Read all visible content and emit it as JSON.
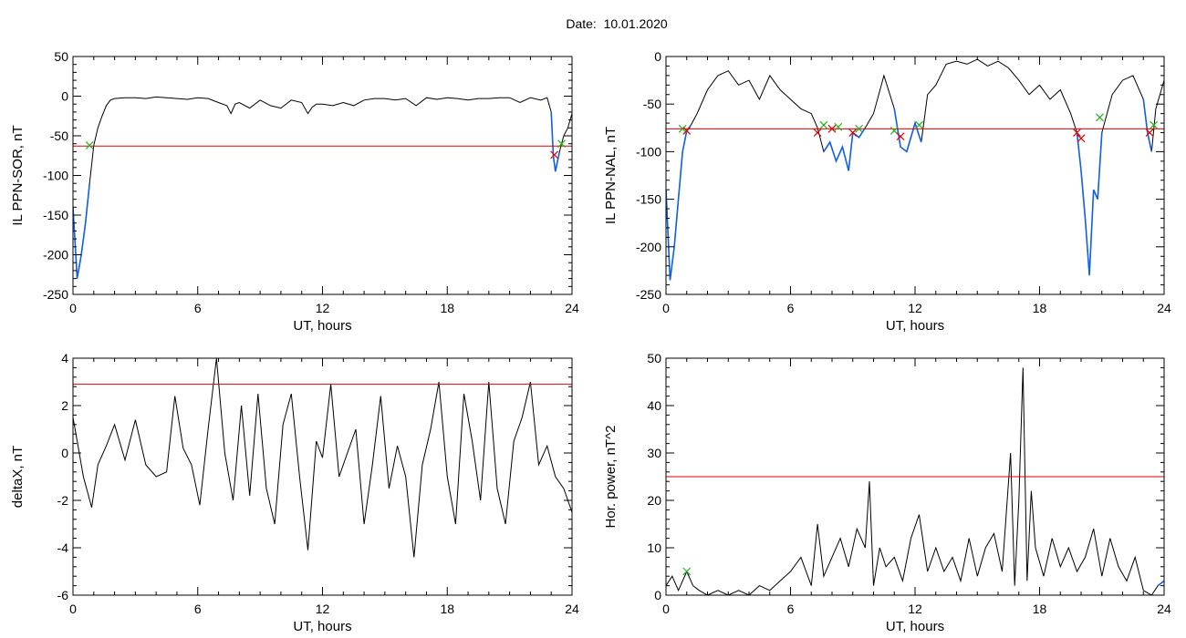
{
  "page": {
    "title": "Date:  10.01.2020"
  },
  "colors": {
    "trace": "#000000",
    "threshold": "#e00000",
    "highlight": "#1060e0",
    "start_marker": "#20b020",
    "end_marker": "#e00000"
  },
  "chart_data": [
    {
      "type": "line",
      "xlabel": "UT, hours",
      "ylabel": "IL PPN-SOR, nT",
      "xlim": [
        0,
        24
      ],
      "ylim": [
        -250,
        50
      ],
      "xticks": [
        0,
        6,
        12,
        18,
        24
      ],
      "yticks": [
        50,
        0,
        -50,
        -100,
        -150,
        -200,
        -250
      ],
      "threshold": -63,
      "x": [
        0,
        0.2,
        0.4,
        0.6,
        0.8,
        1.0,
        1.2,
        1.4,
        1.6,
        1.8,
        2.0,
        2.5,
        3,
        3.5,
        4,
        4.5,
        5,
        5.5,
        6,
        6.5,
        7,
        7.4,
        7.6,
        7.8,
        8,
        8.5,
        9,
        9.5,
        10,
        10.5,
        11,
        11.3,
        11.5,
        11.7,
        12,
        12.5,
        13,
        13.5,
        14,
        14.5,
        15,
        15.5,
        16,
        16.5,
        17,
        17.5,
        18,
        18.5,
        19,
        19.5,
        20,
        20.5,
        21,
        21.5,
        22,
        22.5,
        22.8,
        23.0,
        23.1,
        23.2,
        23.4,
        23.6,
        23.8,
        24
      ],
      "y": [
        -140,
        -230,
        -200,
        -160,
        -110,
        -62,
        -40,
        -25,
        -12,
        -5,
        -3,
        -2,
        -2,
        -3,
        -1,
        -2,
        -3,
        -4,
        -2,
        -3,
        -8,
        -12,
        -22,
        -10,
        -8,
        -15,
        -5,
        -12,
        -15,
        -5,
        -8,
        -22,
        -14,
        -10,
        -10,
        -12,
        -8,
        -12,
        -5,
        -3,
        -3,
        -5,
        -3,
        -12,
        -2,
        -4,
        -2,
        -3,
        -5,
        -3,
        -3,
        -2,
        -2,
        -8,
        -2,
        -5,
        -2,
        -20,
        -75,
        -95,
        -70,
        -50,
        -40,
        -22
      ],
      "highlight_ranges": [
        [
          0,
          0.9
        ],
        [
          23.0,
          23.5
        ]
      ],
      "markers": [
        {
          "x": 0.8,
          "y": -62,
          "kind": "start"
        },
        {
          "x": 23.15,
          "y": -74,
          "kind": "end"
        },
        {
          "x": 23.5,
          "y": -60,
          "kind": "start"
        }
      ]
    },
    {
      "type": "line",
      "xlabel": "UT, hours",
      "ylabel": "IL PPN-NAL, nT",
      "xlim": [
        0,
        24
      ],
      "ylim": [
        -250,
        0
      ],
      "xticks": [
        0,
        6,
        12,
        18,
        24
      ],
      "yticks": [
        0,
        -50,
        -100,
        -150,
        -200,
        -250
      ],
      "threshold": -76,
      "x": [
        0,
        0.2,
        0.4,
        0.6,
        0.8,
        1.0,
        1.2,
        1.5,
        2,
        2.5,
        3,
        3.5,
        4,
        4.5,
        5,
        5.5,
        6,
        6.5,
        7,
        7.3,
        7.6,
        7.9,
        8.2,
        8.5,
        8.8,
        9.0,
        9.3,
        9.6,
        10,
        10.5,
        11,
        11.3,
        11.6,
        12,
        12.3,
        12.6,
        13,
        13.5,
        14,
        14.5,
        15,
        15.5,
        16,
        16.5,
        17,
        17.5,
        18,
        18.5,
        19,
        19.5,
        19.8,
        20.0,
        20.2,
        20.4,
        20.6,
        20.8,
        21,
        21.5,
        22,
        22.5,
        23,
        23.2,
        23.4,
        23.6,
        24
      ],
      "y": [
        -140,
        -235,
        -200,
        -150,
        -100,
        -78,
        -72,
        -60,
        -35,
        -20,
        -15,
        -30,
        -25,
        -45,
        -20,
        -35,
        -45,
        -55,
        -60,
        -75,
        -100,
        -90,
        -110,
        -95,
        -120,
        -80,
        -85,
        -75,
        -60,
        -20,
        -55,
        -95,
        -100,
        -70,
        -90,
        -40,
        -30,
        -8,
        -5,
        -8,
        -3,
        -10,
        -5,
        -12,
        -25,
        -40,
        -30,
        -45,
        -35,
        -60,
        -80,
        -120,
        -170,
        -230,
        -140,
        -150,
        -80,
        -40,
        -25,
        -20,
        -45,
        -80,
        -100,
        -55,
        -25
      ],
      "highlight_ranges": [
        [
          0,
          1.2
        ],
        [
          7.4,
          9.6
        ],
        [
          10.9,
          12.4
        ],
        [
          19.6,
          21.2
        ],
        [
          23.0,
          23.5
        ]
      ],
      "markers": [
        {
          "x": 0.8,
          "y": -76,
          "kind": "start"
        },
        {
          "x": 1.0,
          "y": -78,
          "kind": "end"
        },
        {
          "x": 7.3,
          "y": -80,
          "kind": "end"
        },
        {
          "x": 7.6,
          "y": -72,
          "kind": "start"
        },
        {
          "x": 8.0,
          "y": -76,
          "kind": "end"
        },
        {
          "x": 8.3,
          "y": -74,
          "kind": "start"
        },
        {
          "x": 9.0,
          "y": -80,
          "kind": "end"
        },
        {
          "x": 9.3,
          "y": -76,
          "kind": "start"
        },
        {
          "x": 11.0,
          "y": -78,
          "kind": "start"
        },
        {
          "x": 11.3,
          "y": -84,
          "kind": "end"
        },
        {
          "x": 12.2,
          "y": -72,
          "kind": "start"
        },
        {
          "x": 19.8,
          "y": -80,
          "kind": "end"
        },
        {
          "x": 20.0,
          "y": -86,
          "kind": "end"
        },
        {
          "x": 20.9,
          "y": -64,
          "kind": "start"
        },
        {
          "x": 23.3,
          "y": -80,
          "kind": "end"
        },
        {
          "x": 23.5,
          "y": -72,
          "kind": "start"
        }
      ]
    },
    {
      "type": "line",
      "xlabel": "UT, hours",
      "ylabel": "deltaX, nT",
      "xlim": [
        0,
        24
      ],
      "ylim": [
        -6,
        4
      ],
      "xticks": [
        0,
        6,
        12,
        18,
        24
      ],
      "yticks": [
        4,
        2,
        0,
        -2,
        -4,
        -6
      ],
      "threshold": 2.9,
      "x": [
        0,
        0.2,
        0.5,
        0.9,
        1.2,
        1.6,
        2.0,
        2.5,
        3.0,
        3.5,
        4.0,
        4.5,
        4.9,
        5.3,
        5.7,
        6.1,
        6.5,
        6.9,
        7.3,
        7.7,
        8.1,
        8.5,
        8.9,
        9.3,
        9.7,
        10.1,
        10.5,
        10.9,
        11.3,
        11.7,
        12.0,
        12.4,
        12.8,
        13.2,
        13.6,
        14.0,
        14.4,
        14.8,
        15.2,
        15.6,
        16.0,
        16.4,
        16.8,
        17.2,
        17.6,
        18.0,
        18.4,
        18.8,
        19.2,
        19.6,
        20.0,
        20.4,
        20.8,
        21.2,
        21.6,
        22.0,
        22.4,
        22.8,
        23.2,
        23.6,
        24
      ],
      "y": [
        1.5,
        0.5,
        -1.0,
        -2.3,
        -0.5,
        0.3,
        1.2,
        -0.3,
        1.4,
        -0.5,
        -1.0,
        -0.8,
        2.4,
        0.2,
        -0.5,
        -2.2,
        1.0,
        4.0,
        0.0,
        -2.0,
        2.0,
        -1.8,
        2.5,
        -1.5,
        -3.0,
        1.2,
        2.5,
        -1.0,
        -4.1,
        0.5,
        -0.2,
        2.9,
        -1.0,
        0.0,
        1.0,
        -3.0,
        -0.5,
        2.4,
        -1.5,
        0.3,
        -1.0,
        -4.4,
        -0.5,
        1.0,
        3.0,
        -1.0,
        -3.0,
        2.5,
        0.5,
        -2.0,
        3.0,
        -1.5,
        -3.0,
        0.5,
        1.5,
        3.0,
        -0.5,
        0.3,
        -1.0,
        -1.5,
        -2.5
      ],
      "highlight_ranges": [],
      "markers": []
    },
    {
      "type": "line",
      "xlabel": "UT, hours",
      "ylabel": "Hor. power, nT^2",
      "xlim": [
        0,
        24
      ],
      "ylim": [
        0,
        50
      ],
      "xticks": [
        0,
        6,
        12,
        18,
        24
      ],
      "yticks": [
        50,
        40,
        30,
        20,
        10,
        0
      ],
      "threshold": 25,
      "x": [
        0,
        0.3,
        0.6,
        1.0,
        1.3,
        1.6,
        2.0,
        2.5,
        3.0,
        3.5,
        4.0,
        4.5,
        5.0,
        5.5,
        6.0,
        6.5,
        7.0,
        7.3,
        7.6,
        8.0,
        8.4,
        8.8,
        9.2,
        9.6,
        9.8,
        10.0,
        10.3,
        10.6,
        11.0,
        11.4,
        11.8,
        12.2,
        12.6,
        13.0,
        13.4,
        13.8,
        14.2,
        14.6,
        15.0,
        15.4,
        15.8,
        16.2,
        16.6,
        16.8,
        17.0,
        17.2,
        17.4,
        17.6,
        17.8,
        18.2,
        18.6,
        19.0,
        19.4,
        19.8,
        20.2,
        20.6,
        21.0,
        21.4,
        21.8,
        22.2,
        22.6,
        23.0,
        23.4,
        23.7,
        24
      ],
      "y": [
        2,
        4,
        1,
        5,
        2,
        1,
        0,
        1,
        0,
        1,
        0,
        2,
        1,
        3,
        5,
        8,
        2,
        15,
        4,
        8,
        12,
        6,
        14,
        10,
        24,
        2,
        10,
        6,
        8,
        3,
        12,
        17,
        5,
        10,
        5,
        8,
        3,
        12,
        4,
        10,
        13,
        5,
        30,
        2,
        20,
        48,
        3,
        22,
        10,
        4,
        12,
        6,
        10,
        5,
        8,
        14,
        4,
        12,
        6,
        3,
        8,
        1,
        0,
        2,
        3
      ],
      "highlight_ranges": [
        [
          23.6,
          24
        ]
      ],
      "markers": [
        {
          "x": 1.0,
          "y": 5,
          "kind": "start"
        }
      ]
    }
  ]
}
